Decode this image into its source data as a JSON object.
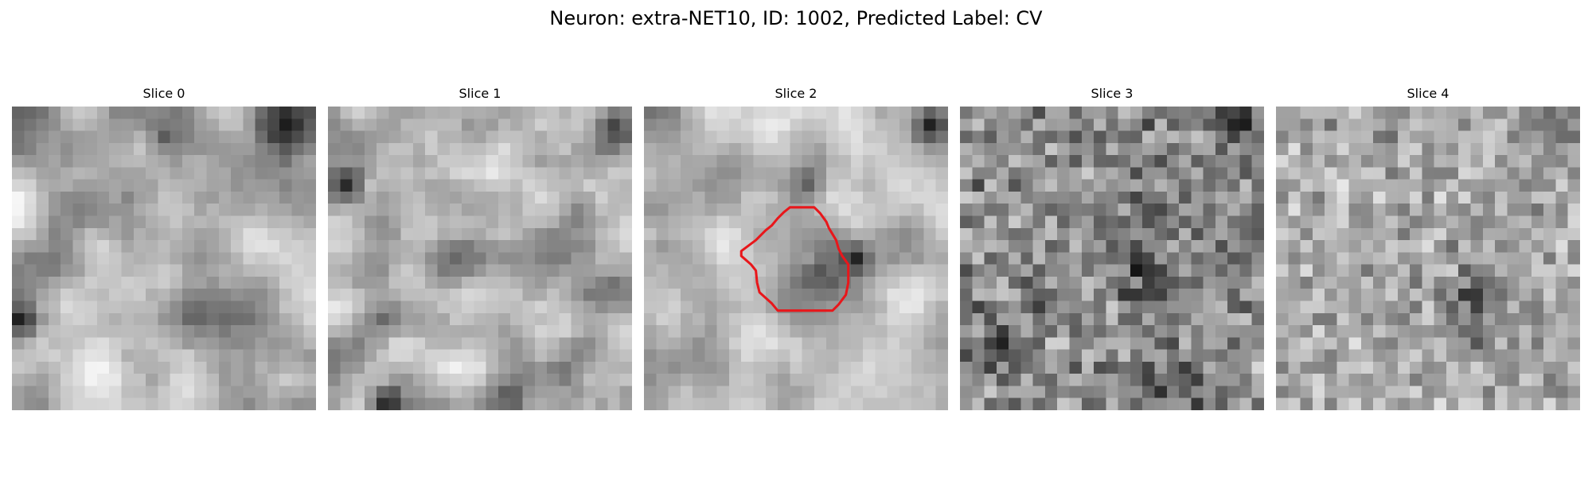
{
  "figure": {
    "title": "Neuron: extra-NET10, ID: 1002, Predicted Label: CV",
    "grid_size": 25,
    "contour_color": "#e8171b",
    "contour_slice": 2
  },
  "slices": [
    {
      "title": "Slice 0"
    },
    {
      "title": "Slice 1"
    },
    {
      "title": "Slice 2"
    },
    {
      "title": "Slice 3"
    },
    {
      "title": "Slice 4"
    }
  ]
}
